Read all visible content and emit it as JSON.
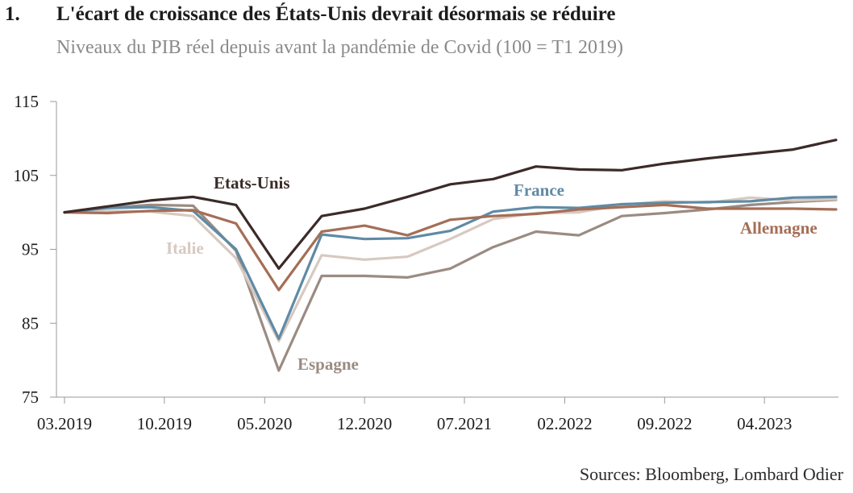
{
  "header": {
    "number": "1.",
    "title": "L'écart de croissance des États-Unis devrait désormais se réduire",
    "subtitle": "Niveaux du PIB réel depuis avant la pandémie de Covid (100 = T1 2019)"
  },
  "footer": {
    "source": "Sources: Bloomberg, Lombard Odier"
  },
  "chart_data": {
    "type": "line",
    "title": "L'écart de croissance des États-Unis devrait désormais se réduire",
    "subtitle": "Niveaux du PIB réel depuis avant la pandémie de Covid (100 = T1 2019)",
    "xlabel": "",
    "ylabel": "",
    "ylim": [
      75,
      115
    ],
    "yticks": [
      75,
      85,
      95,
      105,
      115
    ],
    "x": [
      "T1 2019",
      "T2 2019",
      "T3 2019",
      "T4 2019",
      "T1 2020",
      "T2 2020",
      "T3 2020",
      "T4 2020",
      "T1 2021",
      "T2 2021",
      "T3 2021",
      "T4 2021",
      "T1 2022",
      "T2 2022",
      "T3 2022",
      "T4 2022",
      "T1 2023",
      "T2 2023",
      "T3 2023"
    ],
    "xticks": [
      {
        "label": "03.2019",
        "index": 0
      },
      {
        "label": "10.2019",
        "index": 2.33
      },
      {
        "label": "05.2020",
        "index": 4.67
      },
      {
        "label": "12.2020",
        "index": 7
      },
      {
        "label": "07.2021",
        "index": 9.33
      },
      {
        "label": "02.2022",
        "index": 11.67
      },
      {
        "label": "09.2022",
        "index": 14
      },
      {
        "label": "04.2023",
        "index": 16.33
      }
    ],
    "grid": false,
    "series": [
      {
        "name": "Espagne",
        "color": "#9b8b82",
        "values": [
          100,
          100.6,
          101.0,
          100.9,
          94.8,
          78.6,
          91.4,
          91.4,
          91.2,
          92.4,
          95.3,
          97.4,
          96.9,
          99.5,
          99.9,
          100.4,
          101.0,
          101.4,
          101.7
        ]
      },
      {
        "name": "Italie",
        "color": "#d7c9c1",
        "values": [
          100,
          100.2,
          100.1,
          99.5,
          93.8,
          82.6,
          94.2,
          93.6,
          94.0,
          96.4,
          99.1,
          99.9,
          100.0,
          101.0,
          101.5,
          101.3,
          102.0,
          101.6,
          101.8
        ]
      },
      {
        "name": "France",
        "color": "#5f8aa5",
        "values": [
          100,
          100.6,
          100.7,
          100.2,
          95.0,
          82.9,
          97.0,
          96.4,
          96.5,
          97.5,
          100.1,
          100.7,
          100.6,
          101.1,
          101.3,
          101.4,
          101.5,
          102.0,
          102.1
        ]
      },
      {
        "name": "Allemagne",
        "color": "#a56e56",
        "values": [
          100,
          99.9,
          100.2,
          100.3,
          98.5,
          89.5,
          97.4,
          98.2,
          96.9,
          99.0,
          99.5,
          99.8,
          100.4,
          100.7,
          101.0,
          100.5,
          100.5,
          100.5,
          100.4
        ]
      },
      {
        "name": "Etats-Unis",
        "color": "#3b2b28",
        "values": [
          100,
          100.8,
          101.6,
          102.1,
          101.0,
          92.4,
          99.5,
          100.5,
          102.1,
          103.8,
          104.5,
          106.2,
          105.8,
          105.7,
          106.6,
          107.3,
          107.9,
          108.5,
          109.8
        ]
      }
    ]
  }
}
